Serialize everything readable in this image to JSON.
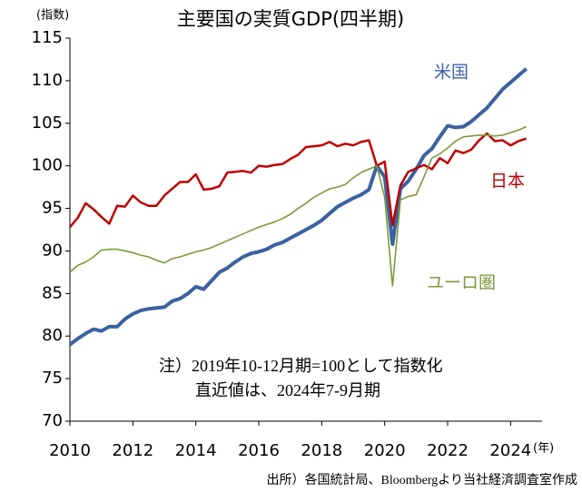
{
  "chart_data": {
    "type": "line",
    "title": "主要国の実質GDP(四半期)",
    "y_axis_label": "(指数)",
    "x_axis_label": "(年)",
    "annotations": [
      "注）2019年10-12月期=100として指数化",
      "直近値は、2024年7-9月期"
    ],
    "source": "出所）各国統計局、Bloombergより当社経済調査室作成",
    "x": [
      2010,
      2010.25,
      2010.5,
      2010.75,
      2011,
      2011.25,
      2011.5,
      2011.75,
      2012,
      2012.25,
      2012.5,
      2012.75,
      2013,
      2013.25,
      2013.5,
      2013.75,
      2014,
      2014.25,
      2014.5,
      2014.75,
      2015,
      2015.25,
      2015.5,
      2015.75,
      2016,
      2016.25,
      2016.5,
      2016.75,
      2017,
      2017.25,
      2017.5,
      2017.75,
      2018,
      2018.25,
      2018.5,
      2018.75,
      2019,
      2019.25,
      2019.5,
      2019.75,
      2020,
      2020.25,
      2020.5,
      2020.75,
      2021,
      2021.25,
      2021.5,
      2021.75,
      2022,
      2022.25,
      2022.5,
      2022.75,
      2023,
      2023.25,
      2023.5,
      2023.75,
      2024,
      2024.25,
      2024.5
    ],
    "series": [
      {
        "name": "米国",
        "color": "#3b62a0",
        "values": [
          79.0,
          79.7,
          80.3,
          80.8,
          80.6,
          81.1,
          81.1,
          82.0,
          82.6,
          83.0,
          83.2,
          83.3,
          83.4,
          84.1,
          84.4,
          85.0,
          85.8,
          85.5,
          86.5,
          87.5,
          88.0,
          88.7,
          89.3,
          89.7,
          89.9,
          90.2,
          90.7,
          91.0,
          91.5,
          92.0,
          92.5,
          93.0,
          93.6,
          94.4,
          95.2,
          95.7,
          96.2,
          96.6,
          97.2,
          100.0,
          98.7,
          90.8,
          97.3,
          98.2,
          99.6,
          101.2,
          102.0,
          103.4,
          104.7,
          104.5,
          104.6,
          105.2,
          106.0,
          106.8,
          107.9,
          109.0,
          109.8,
          110.6,
          111.4
        ]
      },
      {
        "name": "日本",
        "color": "#c00000",
        "values": [
          92.8,
          93.9,
          95.6,
          94.9,
          94.0,
          93.2,
          95.3,
          95.2,
          96.5,
          95.7,
          95.3,
          95.3,
          96.5,
          97.3,
          98.1,
          98.1,
          99.0,
          97.2,
          97.3,
          97.6,
          99.2,
          99.3,
          99.4,
          99.2,
          100.0,
          99.9,
          100.1,
          100.2,
          100.8,
          101.3,
          102.2,
          102.3,
          102.4,
          102.8,
          102.3,
          102.6,
          102.4,
          102.8,
          103.0,
          100.0,
          100.5,
          93.0,
          97.7,
          99.3,
          99.7,
          100.1,
          99.6,
          100.9,
          100.3,
          101.8,
          101.5,
          101.9,
          103.0,
          103.8,
          102.9,
          103.0,
          102.4,
          102.9,
          103.2
        ]
      },
      {
        "name": "ユーロ圏",
        "color": "#7a9a3c",
        "values": [
          87.5,
          88.3,
          88.7,
          89.3,
          90.1,
          90.2,
          90.2,
          90.0,
          89.8,
          89.5,
          89.3,
          88.9,
          88.6,
          89.1,
          89.3,
          89.6,
          89.9,
          90.1,
          90.4,
          90.8,
          91.2,
          91.6,
          92.0,
          92.4,
          92.8,
          93.1,
          93.4,
          93.8,
          94.3,
          95.0,
          95.6,
          96.3,
          96.8,
          97.3,
          97.5,
          97.8,
          98.6,
          99.2,
          99.6,
          100.0,
          96.3,
          85.9,
          96.0,
          96.4,
          96.6,
          98.7,
          100.9,
          101.4,
          102.1,
          102.9,
          103.4,
          103.5,
          103.6,
          103.6,
          103.5,
          103.6,
          103.9,
          104.2,
          104.6
        ]
      }
    ],
    "xlim": [
      2010,
      2025
    ],
    "xticks": [
      2010,
      2012,
      2014,
      2016,
      2018,
      2020,
      2022,
      2024
    ],
    "ylim": [
      70,
      115
    ],
    "yticks": [
      70,
      75,
      80,
      85,
      90,
      95,
      100,
      105,
      110,
      115
    ],
    "grid": false
  }
}
